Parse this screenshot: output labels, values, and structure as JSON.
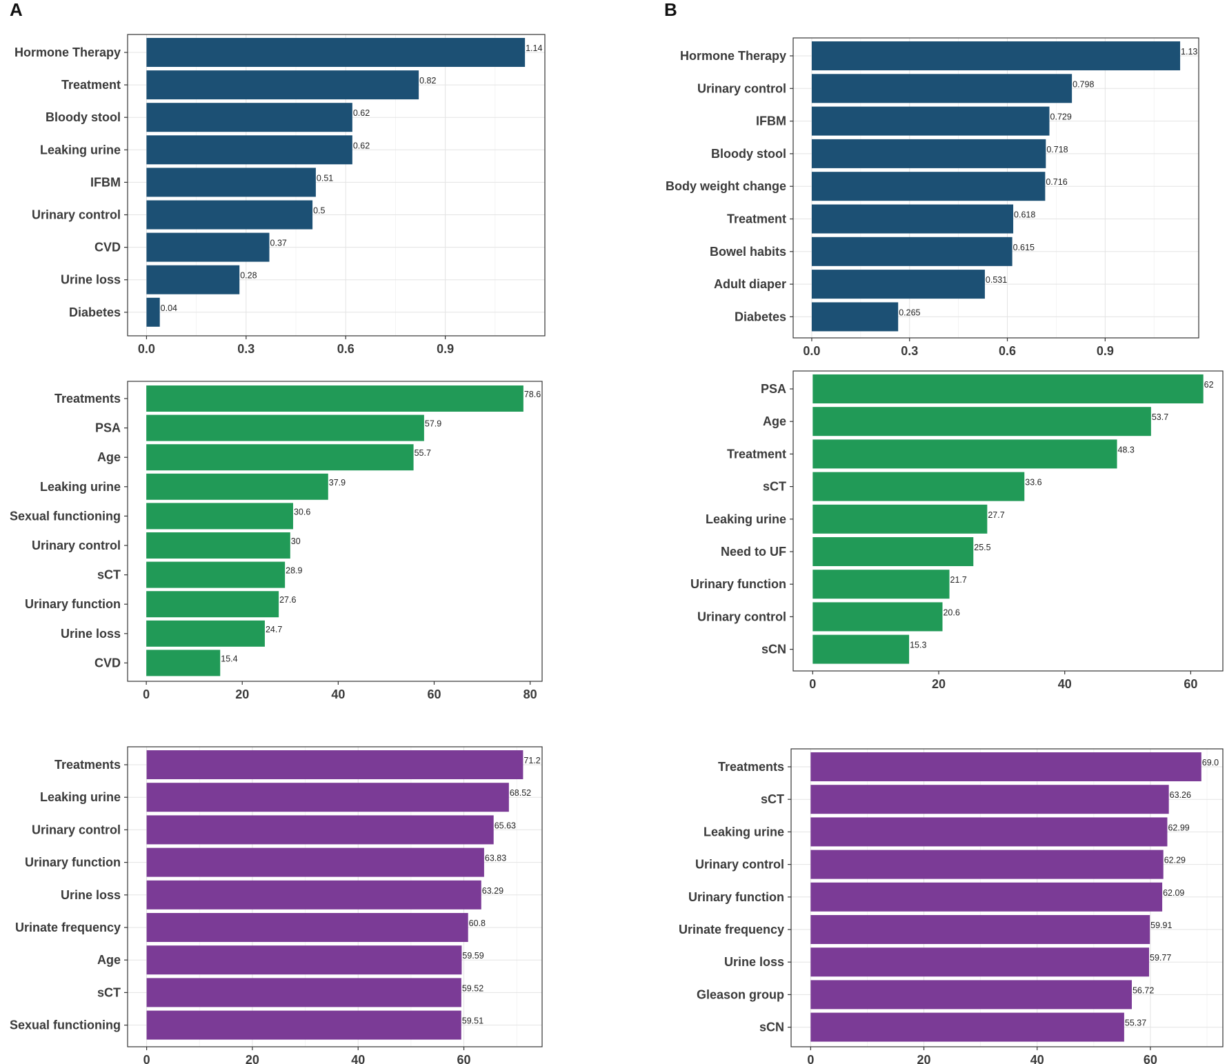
{
  "panel_labels": [
    "A",
    "B"
  ],
  "colors": {
    "blue": "#1c5074",
    "green": "#219a57",
    "purple": "#7b3b96"
  },
  "chart_data": [
    {
      "type": "bar",
      "orientation": "horizontal",
      "panel": "A",
      "color": "#1c5074",
      "categories": [
        "Hormone Therapy",
        "Treatment",
        "Bloody stool",
        "Leaking urine",
        "IFBM",
        "Urinary control",
        "CVD",
        "Urine loss",
        "Diabetes"
      ],
      "values": [
        1.14,
        0.82,
        0.62,
        0.62,
        0.51,
        0.5,
        0.37,
        0.28,
        0.04
      ],
      "value_labels": [
        "1.14",
        "0.82",
        "0.62",
        "0.62",
        "0.51",
        "0.5",
        "0.37",
        "0.28",
        "0.04"
      ],
      "xlim": [
        -0.057,
        1.2
      ],
      "xticks": [
        0.0,
        0.3,
        0.6,
        0.9
      ],
      "xtick_labels": [
        "0.0",
        "0.3",
        "0.6",
        "0.9"
      ],
      "grid": true
    },
    {
      "type": "bar",
      "orientation": "horizontal",
      "panel": "B",
      "color": "#1c5074",
      "categories": [
        "Hormone Therapy",
        "Urinary control",
        "IFBM",
        "Bloody stool",
        "Body weight change",
        "Treatment",
        "Bowel habits",
        "Adult diaper",
        "Diabetes"
      ],
      "values": [
        1.13,
        0.798,
        0.729,
        0.718,
        0.716,
        0.618,
        0.615,
        0.531,
        0.265
      ],
      "value_labels": [
        "1.13",
        "0.798",
        "0.729",
        "0.718",
        "0.716",
        "0.618",
        "0.615",
        "0.531",
        "0.265"
      ],
      "xlim": [
        -0.057,
        1.187
      ],
      "xticks": [
        0.0,
        0.3,
        0.6,
        0.9
      ],
      "xtick_labels": [
        "0.0",
        "0.3",
        "0.6",
        "0.9"
      ],
      "grid": true
    },
    {
      "type": "bar",
      "orientation": "horizontal",
      "panel": "A",
      "color": "#219a57",
      "categories": [
        "Treatments",
        "PSA",
        "Age",
        "Leaking urine",
        "Sexual functioning",
        "Urinary control",
        "sCT",
        "Urinary function",
        "Urine loss",
        "CVD"
      ],
      "values": [
        78.6,
        57.9,
        55.7,
        37.9,
        30.6,
        30,
        28.9,
        27.6,
        24.7,
        15.4
      ],
      "value_labels": [
        "78.6",
        "57.9",
        "55.7",
        "37.9",
        "30.6",
        "30",
        "28.9",
        "27.6",
        "24.7",
        "15.4"
      ],
      "xlim": [
        -3.9,
        82.5
      ],
      "xticks": [
        0,
        20,
        40,
        60,
        80
      ],
      "xtick_labels": [
        "0",
        "20",
        "40",
        "60",
        "80"
      ],
      "grid": false
    },
    {
      "type": "bar",
      "orientation": "horizontal",
      "panel": "B",
      "color": "#219a57",
      "categories": [
        "PSA",
        "Age",
        "Treatment",
        "sCT",
        "Leaking urine",
        "Need to UF",
        "Urinary function",
        "Urinary control",
        "sCN"
      ],
      "values": [
        62,
        53.7,
        48.3,
        33.6,
        27.7,
        25.5,
        21.7,
        20.6,
        15.3
      ],
      "value_labels": [
        "62",
        "53.7",
        "48.3",
        "33.6",
        "27.7",
        "25.5",
        "21.7",
        "20.6",
        "15.3"
      ],
      "xlim": [
        -3.1,
        65.1
      ],
      "xticks": [
        0,
        20,
        40,
        60
      ],
      "xtick_labels": [
        "0",
        "20",
        "40",
        "60"
      ],
      "grid": false
    },
    {
      "type": "bar",
      "orientation": "horizontal",
      "panel": "A",
      "color": "#7b3b96",
      "categories": [
        "Treatments",
        "Leaking urine",
        "Urinary control",
        "Urinary function",
        "Urine loss",
        "Urinate frequency",
        "Age",
        "sCT",
        "Sexual functioning"
      ],
      "values": [
        71.2,
        68.52,
        65.63,
        63.83,
        63.29,
        60.8,
        59.59,
        59.52,
        59.51
      ],
      "value_labels": [
        "71.2",
        "68.52",
        "65.63",
        "63.83",
        "63.29",
        "60.8",
        "59.59",
        "59.52",
        "59.51"
      ],
      "xlim": [
        -3.6,
        74.8
      ],
      "xticks": [
        0,
        20,
        40,
        60
      ],
      "xtick_labels": [
        "0",
        "20",
        "40",
        "60"
      ],
      "grid": true
    },
    {
      "type": "bar",
      "orientation": "horizontal",
      "panel": "B",
      "color": "#7b3b96",
      "categories": [
        "Treatments",
        "sCT",
        "Leaking urine",
        "Urinary control",
        "Urinary function",
        "Urinate frequency",
        "Urine loss",
        "Gleason group",
        "sCN"
      ],
      "values": [
        69.0,
        63.26,
        62.99,
        62.29,
        62.09,
        59.91,
        59.77,
        56.72,
        55.37
      ],
      "value_labels": [
        "69.0",
        "63.26",
        "62.99",
        "62.29",
        "62.09",
        "59.91",
        "59.77",
        "56.72",
        "55.37"
      ],
      "xlim": [
        -3.45,
        72.8
      ],
      "xticks": [
        0,
        20,
        40,
        60
      ],
      "xtick_labels": [
        "0",
        "20",
        "40",
        "60"
      ],
      "grid": true
    }
  ]
}
